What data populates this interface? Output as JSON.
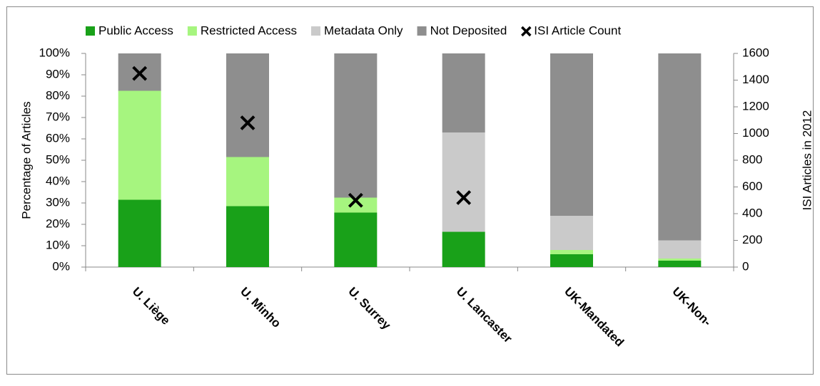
{
  "chart_data": {
    "type": "bar",
    "stacked": true,
    "categories": [
      "U. Liège",
      "U. Minho",
      "U. Surrey",
      "U. Lancaster",
      "UK-Mandated",
      "UK-Non-"
    ],
    "series": [
      {
        "name": "Public Access",
        "color": "#19a119",
        "values": [
          31.5,
          28.5,
          25.5,
          16.5,
          6,
          3
        ]
      },
      {
        "name": "Restricted Access",
        "color": "#a6f57f",
        "values": [
          51,
          23,
          7,
          0,
          2,
          1
        ]
      },
      {
        "name": "Metadata Only",
        "color": "#cacaca",
        "values": [
          0,
          0,
          0,
          46.5,
          16,
          8.5
        ]
      },
      {
        "name": "Not Deposited",
        "color": "#8e8e8e",
        "values": [
          17.5,
          48.5,
          67.5,
          37,
          76,
          87.5
        ]
      },
      {
        "name": "ISI Article Count",
        "color": "#000000",
        "type": "scatter",
        "axis": "y2",
        "values": [
          1450,
          1080,
          500,
          520,
          null,
          null
        ]
      }
    ],
    "y_label": "Percentage of Articles",
    "y2_label": "ISI Articles in 2012",
    "ylim": [
      0,
      100
    ],
    "yticks": [
      {
        "value": 0,
        "label": "0%"
      },
      {
        "value": 10,
        "label": "10%"
      },
      {
        "value": 20,
        "label": "20%"
      },
      {
        "value": 30,
        "label": "30%"
      },
      {
        "value": 40,
        "label": "40%"
      },
      {
        "value": 50,
        "label": "50%"
      },
      {
        "value": 60,
        "label": "60%"
      },
      {
        "value": 70,
        "label": "70%"
      },
      {
        "value": 80,
        "label": "80%"
      },
      {
        "value": 90,
        "label": "90%"
      },
      {
        "value": 100,
        "label": "100%"
      }
    ],
    "y2lim": [
      0,
      1600
    ],
    "y2ticks": [
      0,
      200,
      400,
      600,
      800,
      1000,
      1200,
      1400,
      1600
    ],
    "legend": "top"
  }
}
